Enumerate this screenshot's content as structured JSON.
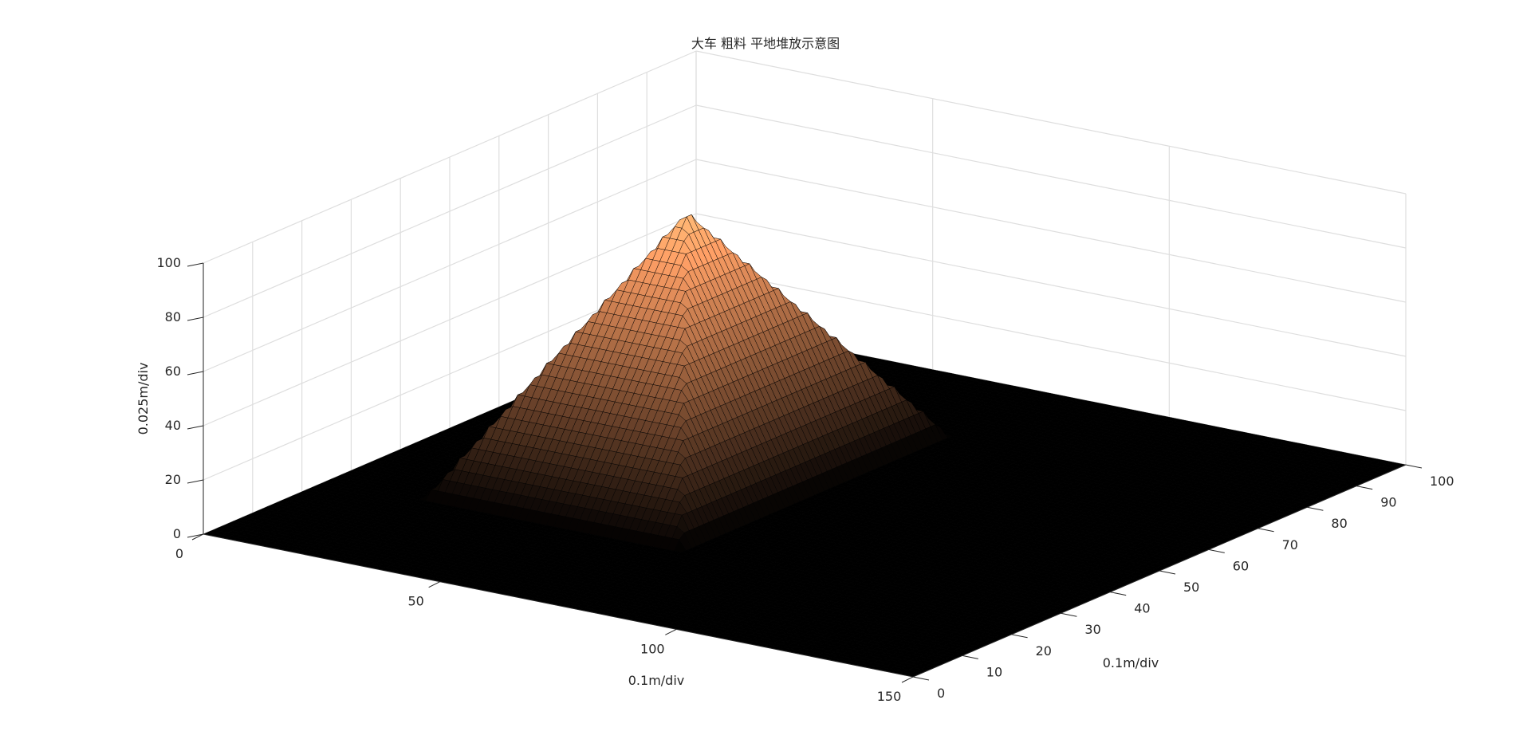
{
  "chart_data": {
    "type": "surface",
    "title": "大车 粗料 平地堆放示意图",
    "xlabel": "0.1m/div",
    "ylabel": "0.1m/div",
    "zlabel": "0.025m/div",
    "xlim": [
      0,
      150
    ],
    "ylim": [
      0,
      100
    ],
    "zlim": [
      0,
      100
    ],
    "x_ticks": [
      0,
      50,
      100,
      150
    ],
    "y_ticks": [
      0,
      10,
      20,
      30,
      40,
      50,
      60,
      70,
      80,
      90,
      100
    ],
    "z_ticks": [
      0,
      20,
      40,
      60,
      80,
      100
    ],
    "grid": true,
    "colormap": "copper",
    "pile": {
      "shape": "pyramid",
      "x_range": [
        20,
        75
      ],
      "y_range": [
        25,
        80
      ],
      "apex": {
        "x": 47.5,
        "y": 52.5,
        "z": 95
      },
      "base_z": 0
    }
  }
}
